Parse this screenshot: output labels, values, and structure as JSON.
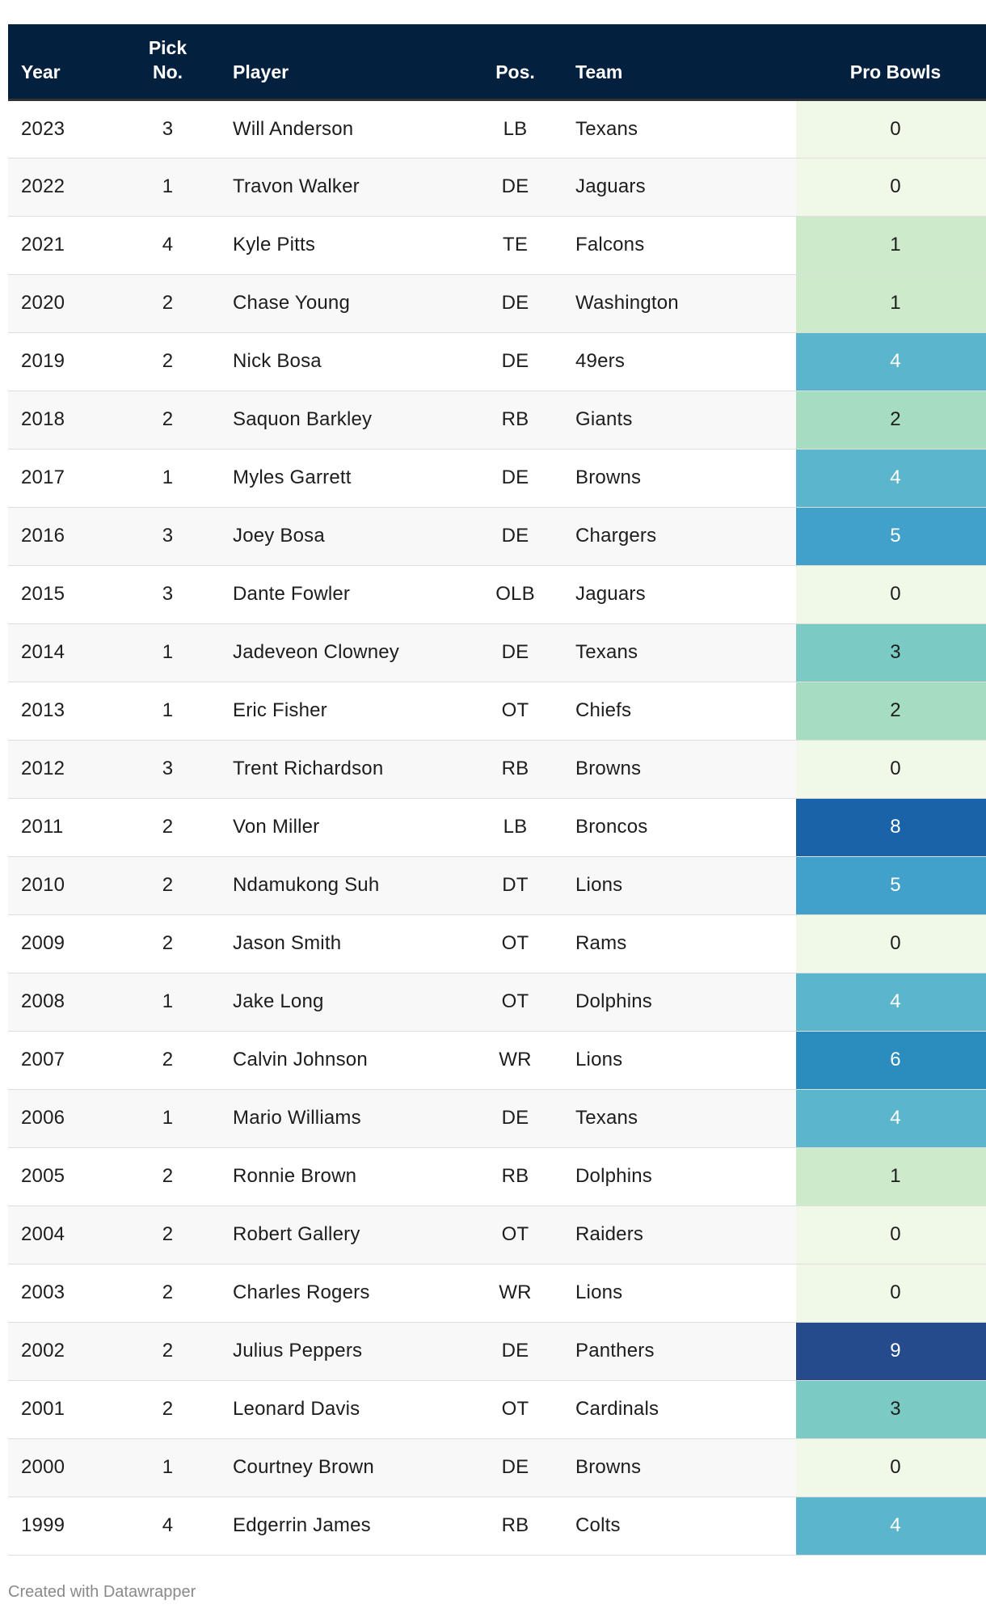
{
  "chart_data": {
    "type": "table",
    "columns": [
      "Year",
      "Pick No.",
      "Player",
      "Pos.",
      "Team",
      "Pro Bowls"
    ],
    "header": {
      "year": "Year",
      "pick": "Pick No.",
      "player": "Player",
      "pos": "Pos.",
      "team": "Team",
      "pro_bowls": "Pro Bowls"
    },
    "rows": [
      {
        "year": "2023",
        "pick": "3",
        "player": "Will Anderson",
        "pos": "LB",
        "team": "Texans",
        "pro_bowls": 0
      },
      {
        "year": "2022",
        "pick": "1",
        "player": "Travon Walker",
        "pos": "DE",
        "team": "Jaguars",
        "pro_bowls": 0
      },
      {
        "year": "2021",
        "pick": "4",
        "player": "Kyle Pitts",
        "pos": "TE",
        "team": "Falcons",
        "pro_bowls": 1
      },
      {
        "year": "2020",
        "pick": "2",
        "player": "Chase Young",
        "pos": "DE",
        "team": "Washington",
        "pro_bowls": 1
      },
      {
        "year": "2019",
        "pick": "2",
        "player": "Nick Bosa",
        "pos": "DE",
        "team": "49ers",
        "pro_bowls": 4
      },
      {
        "year": "2018",
        "pick": "2",
        "player": "Saquon Barkley",
        "pos": "RB",
        "team": "Giants",
        "pro_bowls": 2
      },
      {
        "year": "2017",
        "pick": "1",
        "player": "Myles Garrett",
        "pos": "DE",
        "team": "Browns",
        "pro_bowls": 4
      },
      {
        "year": "2016",
        "pick": "3",
        "player": "Joey Bosa",
        "pos": "DE",
        "team": "Chargers",
        "pro_bowls": 5
      },
      {
        "year": "2015",
        "pick": "3",
        "player": "Dante Fowler",
        "pos": "OLB",
        "team": "Jaguars",
        "pro_bowls": 0
      },
      {
        "year": "2014",
        "pick": "1",
        "player": "Jadeveon Clowney",
        "pos": "DE",
        "team": "Texans",
        "pro_bowls": 3
      },
      {
        "year": "2013",
        "pick": "1",
        "player": "Eric Fisher",
        "pos": "OT",
        "team": "Chiefs",
        "pro_bowls": 2
      },
      {
        "year": "2012",
        "pick": "3",
        "player": "Trent Richardson",
        "pos": "RB",
        "team": "Browns",
        "pro_bowls": 0
      },
      {
        "year": "2011",
        "pick": "2",
        "player": "Von Miller",
        "pos": "LB",
        "team": "Broncos",
        "pro_bowls": 8
      },
      {
        "year": "2010",
        "pick": "2",
        "player": "Ndamukong Suh",
        "pos": "DT",
        "team": "Lions",
        "pro_bowls": 5
      },
      {
        "year": "2009",
        "pick": "2",
        "player": "Jason Smith",
        "pos": "OT",
        "team": "Rams",
        "pro_bowls": 0
      },
      {
        "year": "2008",
        "pick": "1",
        "player": "Jake Long",
        "pos": "OT",
        "team": "Dolphins",
        "pro_bowls": 4
      },
      {
        "year": "2007",
        "pick": "2",
        "player": "Calvin Johnson",
        "pos": "WR",
        "team": "Lions",
        "pro_bowls": 6
      },
      {
        "year": "2006",
        "pick": "1",
        "player": "Mario Williams",
        "pos": "DE",
        "team": "Texans",
        "pro_bowls": 4
      },
      {
        "year": "2005",
        "pick": "2",
        "player": "Ronnie Brown",
        "pos": "RB",
        "team": "Dolphins",
        "pro_bowls": 1
      },
      {
        "year": "2004",
        "pick": "2",
        "player": "Robert Gallery",
        "pos": "OT",
        "team": "Raiders",
        "pro_bowls": 0
      },
      {
        "year": "2003",
        "pick": "2",
        "player": "Charles Rogers",
        "pos": "WR",
        "team": "Lions",
        "pro_bowls": 0
      },
      {
        "year": "2002",
        "pick": "2",
        "player": "Julius Peppers",
        "pos": "DE",
        "team": "Panthers",
        "pro_bowls": 9
      },
      {
        "year": "2001",
        "pick": "2",
        "player": "Leonard Davis",
        "pos": "OT",
        "team": "Cardinals",
        "pro_bowls": 3
      },
      {
        "year": "2000",
        "pick": "1",
        "player": "Courtney Brown",
        "pos": "DE",
        "team": "Browns",
        "pro_bowls": 0
      },
      {
        "year": "1999",
        "pick": "4",
        "player": "Edgerrin James",
        "pos": "RB",
        "team": "Colts",
        "pro_bowls": 4
      }
    ],
    "pro_bowls_color_scale": {
      "0": "#f0f8e8",
      "1": "#cdebcb",
      "2": "#a6dcc0",
      "3": "#7bcbc4",
      "4": "#5bb5cc",
      "5": "#42a1cb",
      "6": "#2b8cbe",
      "8": "#1a63a8",
      "9": "#254b8c"
    },
    "light_text_threshold": 4
  },
  "colors": {
    "header_bg": "#03213f",
    "header_text": "#ffffff",
    "row_alt_bg": "#f8f8f8"
  },
  "footer": {
    "credit": "Created with Datawrapper"
  }
}
